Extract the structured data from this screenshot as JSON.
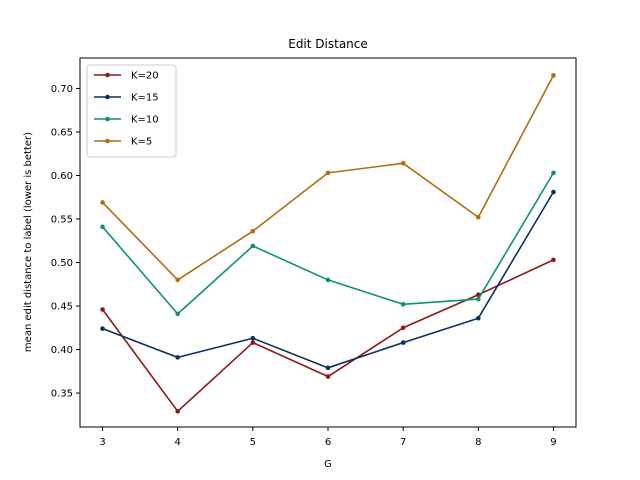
{
  "chart_data": {
    "type": "line",
    "title": "Edit Distance",
    "xlabel": "G",
    "ylabel": "mean edit distance to label (lower is better)",
    "x": [
      3,
      4,
      5,
      6,
      7,
      8,
      9
    ],
    "xlim": [
      2.7,
      9.3
    ],
    "ylim": [
      0.311,
      0.735
    ],
    "xticks": [
      3,
      4,
      5,
      6,
      7,
      8,
      9
    ],
    "yticks": [
      0.35,
      0.4,
      0.45,
      0.5,
      0.55,
      0.6,
      0.65,
      0.7
    ],
    "ytick_labels": [
      "0.35",
      "0.40",
      "0.45",
      "0.50",
      "0.55",
      "0.60",
      "0.65",
      "0.70"
    ],
    "grid": false,
    "legend_position": "top-left",
    "series": [
      {
        "name": "K=20",
        "color": "#8b1a1a",
        "values": [
          0.446,
          0.329,
          0.408,
          0.369,
          0.425,
          0.463,
          0.503
        ]
      },
      {
        "name": "K=15",
        "color": "#0b3060",
        "values": [
          0.424,
          0.391,
          0.413,
          0.379,
          0.408,
          0.436,
          0.581
        ]
      },
      {
        "name": "K=10",
        "color": "#0f9170",
        "values": [
          0.541,
          0.441,
          0.519,
          0.48,
          0.452,
          0.458,
          0.603
        ]
      },
      {
        "name": "K=5",
        "color": "#b06e12",
        "values": [
          0.569,
          0.48,
          0.536,
          0.603,
          0.614,
          0.552,
          0.715
        ]
      }
    ]
  }
}
